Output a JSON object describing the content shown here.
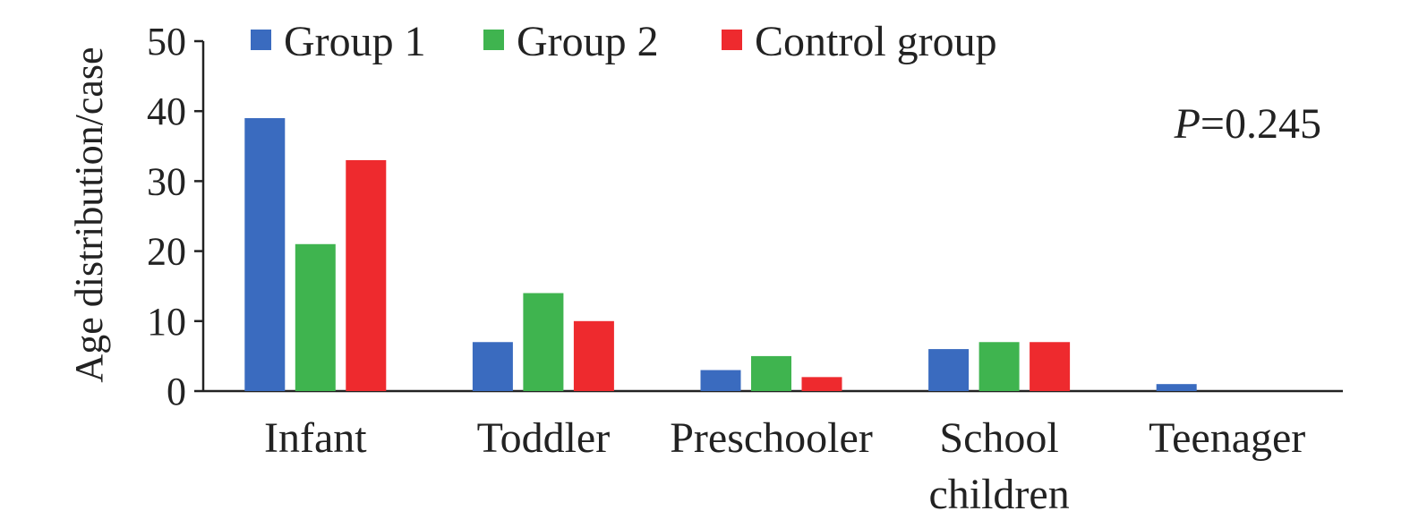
{
  "chart_data": {
    "type": "bar",
    "ylabel": "Age distribution/case",
    "xlabel": "",
    "ylim": [
      0,
      50
    ],
    "yticks": [
      0,
      10,
      20,
      30,
      40,
      50
    ],
    "grid": false,
    "legend_position": "top",
    "categories": [
      [
        "Infant"
      ],
      [
        "Toddler"
      ],
      [
        "Preschooler"
      ],
      [
        "School",
        "children"
      ],
      [
        "Teenager"
      ]
    ],
    "series": [
      {
        "name": "Group 1",
        "color": "#3a6bbf",
        "values": [
          39,
          7,
          3,
          6,
          1
        ]
      },
      {
        "name": "Group 2",
        "color": "#3fb44f",
        "values": [
          21,
          14,
          5,
          7,
          0
        ]
      },
      {
        "name": "Control group",
        "color": "#ee2a2e",
        "values": [
          33,
          10,
          2,
          7,
          0
        ]
      }
    ],
    "annotation": {
      "italic": "P",
      "text": "=0.245"
    }
  }
}
